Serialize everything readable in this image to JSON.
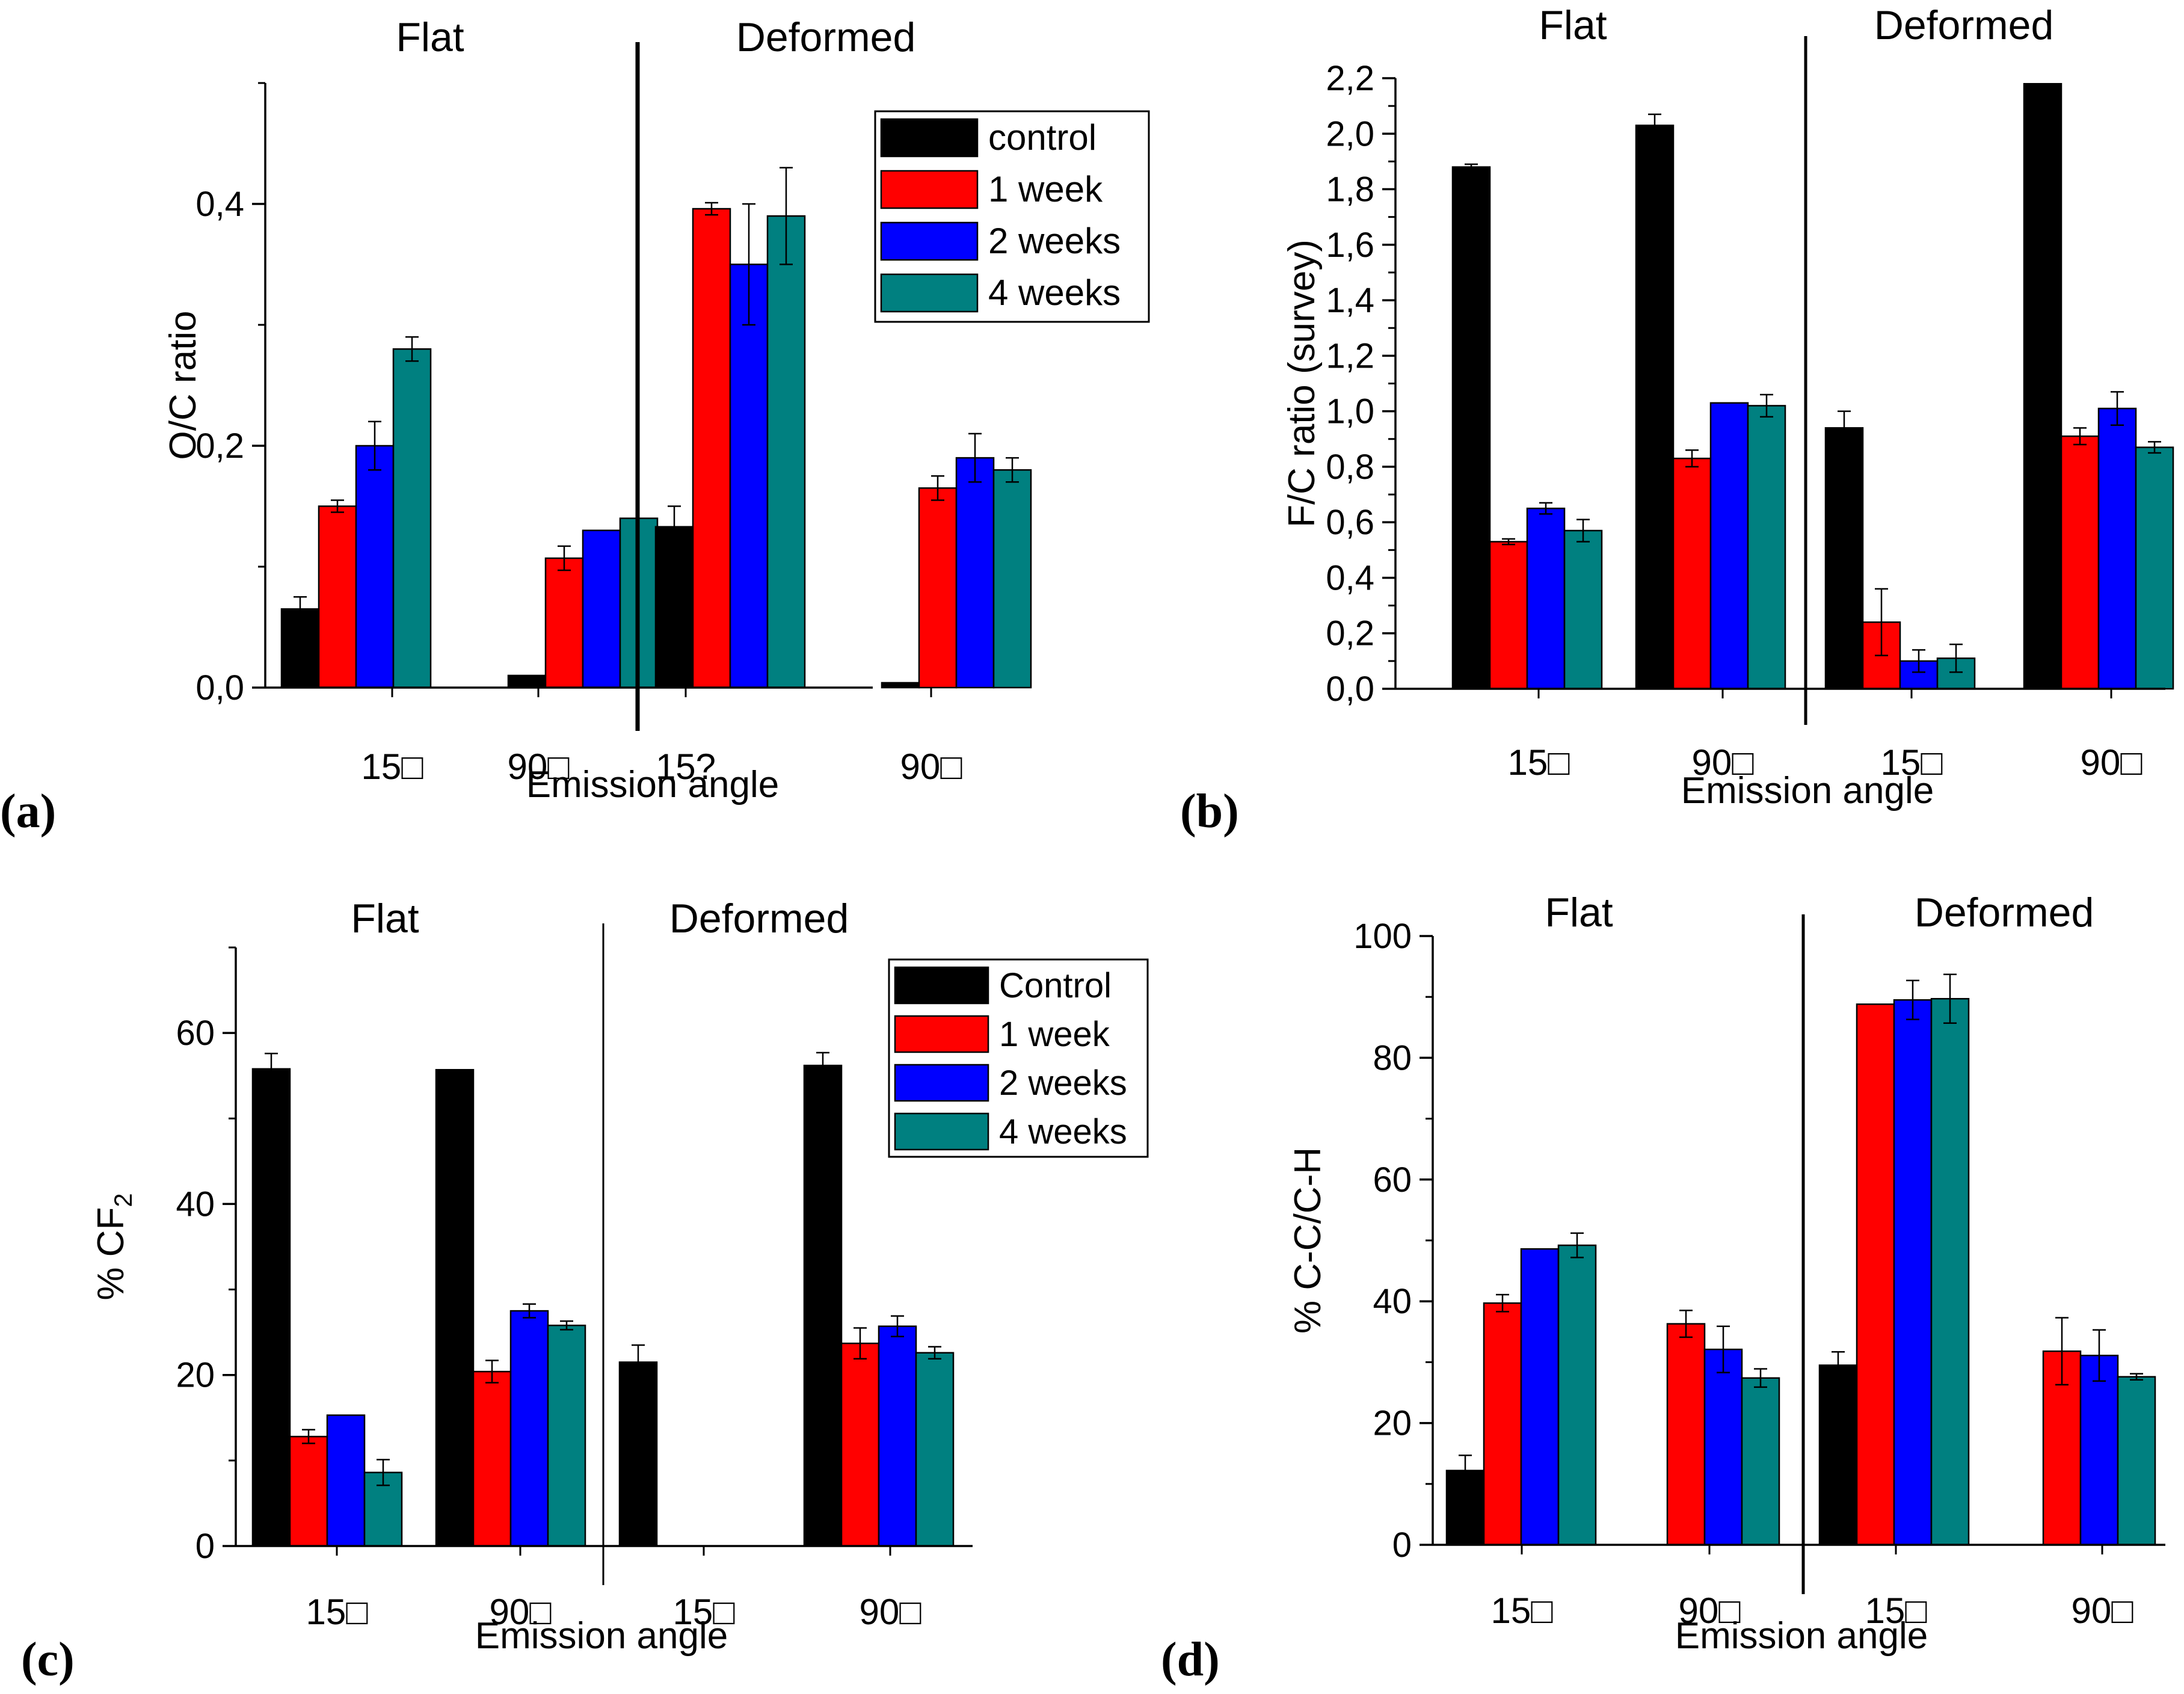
{
  "figure": {
    "background": "#ffffff"
  },
  "colors": {
    "control": "#000000",
    "1 week": "#ff0000",
    "2 weeks": "#0000ff",
    "4 weeks": "#008080"
  },
  "chart_data": [
    {
      "panel": "(a)",
      "type": "bar",
      "ylabel": "O/C ratio",
      "xlabel": "Emission angle",
      "ylim": [
        0,
        0.5
      ],
      "yticks": [
        0.0,
        0.2,
        0.4
      ],
      "ytick_labels": [
        "0,0",
        "0,2",
        "0,4"
      ],
      "minor_ticks": true,
      "groups": [
        "Flat",
        "Deformed"
      ],
      "categories": [
        "15□",
        "90□",
        "15?",
        "90□"
      ],
      "legend": {
        "position": "top-right",
        "entries": [
          "control",
          "1 week",
          "2 weeks",
          "4 weeks"
        ]
      },
      "series": [
        {
          "name": "control",
          "values": [
            0.065,
            0.01,
            0.133,
            0.004
          ],
          "errors": [
            0.01,
            0.0,
            0.017,
            0.0
          ]
        },
        {
          "name": "1 week",
          "values": [
            0.15,
            0.107,
            0.396,
            0.165
          ],
          "errors": [
            0.005,
            0.01,
            0.005,
            0.01
          ]
        },
        {
          "name": "2 weeks",
          "values": [
            0.2,
            0.13,
            0.35,
            0.19
          ],
          "errors": [
            0.02,
            0.0,
            0.05,
            0.02
          ]
        },
        {
          "name": "4 weeks",
          "values": [
            0.28,
            0.14,
            0.39,
            0.18
          ],
          "errors": [
            0.01,
            0.0,
            0.04,
            0.01
          ]
        }
      ]
    },
    {
      "panel": "(b)",
      "type": "bar",
      "ylabel": "F/C ratio (survey)",
      "xlabel": "Emission angle",
      "ylim": [
        0,
        2.2
      ],
      "yticks": [
        0.0,
        0.2,
        0.4,
        0.6,
        0.8,
        1.0,
        1.2,
        1.4,
        1.6,
        1.8,
        2.0,
        2.2
      ],
      "ytick_labels": [
        "0,0",
        "0,2",
        "0,4",
        "0,6",
        "0,8",
        "1,0",
        "1,2",
        "1,4",
        "1,6",
        "1,8",
        "2,0",
        "2,2"
      ],
      "minor_ticks": true,
      "groups": [
        "Flat",
        "Deformed"
      ],
      "categories": [
        "15□",
        "90□",
        "15□",
        "90□"
      ],
      "series": [
        {
          "name": "control",
          "values": [
            1.88,
            2.03,
            0.94,
            2.18
          ],
          "errors": [
            0.01,
            0.04,
            0.06,
            0.0
          ]
        },
        {
          "name": "1 week",
          "values": [
            0.53,
            0.83,
            0.24,
            0.91
          ],
          "errors": [
            0.01,
            0.03,
            0.12,
            0.03
          ]
        },
        {
          "name": "2 weeks",
          "values": [
            0.65,
            1.03,
            0.1,
            1.01
          ],
          "errors": [
            0.02,
            0.0,
            0.04,
            0.06
          ]
        },
        {
          "name": "4 weeks",
          "values": [
            0.57,
            1.02,
            0.11,
            0.87
          ],
          "errors": [
            0.04,
            0.04,
            0.05,
            0.02
          ]
        }
      ]
    },
    {
      "panel": "(c)",
      "type": "bar",
      "ylabel": "% CF",
      "ylabel_subscript": "2",
      "xlabel": "Emission angle",
      "ylim": [
        0,
        70
      ],
      "yticks": [
        0,
        20,
        40,
        60
      ],
      "ytick_labels": [
        "0",
        "20",
        "40",
        "60"
      ],
      "minor_ticks": true,
      "groups": [
        "Flat",
        "Deformed"
      ],
      "categories": [
        "15□",
        "90□",
        "15□",
        "90□"
      ],
      "legend": {
        "position": "top-right",
        "entries": [
          "Control",
          "1 week",
          "2 weeks",
          "4 weeks"
        ]
      },
      "series": [
        {
          "name": "Control",
          "values": [
            55.8,
            55.7,
            21.5,
            56.2
          ],
          "errors": [
            1.8,
            0.0,
            2.0,
            1.5
          ]
        },
        {
          "name": "1 week",
          "values": [
            12.8,
            20.4,
            0,
            23.7
          ],
          "errors": [
            0.8,
            1.3,
            0,
            1.8
          ]
        },
        {
          "name": "2 weeks",
          "values": [
            15.3,
            27.5,
            0,
            25.7
          ],
          "errors": [
            0.0,
            0.8,
            0,
            1.2
          ]
        },
        {
          "name": "4 weeks",
          "values": [
            8.6,
            25.8,
            0,
            22.6
          ],
          "errors": [
            1.5,
            0.5,
            0,
            0.7
          ]
        }
      ]
    },
    {
      "panel": "(d)",
      "type": "bar",
      "ylabel": "% C-C/C-H",
      "xlabel": "Emission angle",
      "ylim": [
        0,
        100
      ],
      "yticks": [
        0,
        20,
        40,
        60,
        80,
        100
      ],
      "ytick_labels": [
        "0",
        "20",
        "40",
        "60",
        "80",
        "100"
      ],
      "minor_ticks": true,
      "groups": [
        "Flat",
        "Deformed"
      ],
      "categories": [
        "15□",
        "90□",
        "15□",
        "90□"
      ],
      "series": [
        {
          "name": "control",
          "values": [
            12.2,
            0,
            29.5,
            0
          ],
          "errors": [
            2.5,
            0,
            2.2,
            0
          ]
        },
        {
          "name": "1 week",
          "values": [
            39.7,
            36.3,
            88.8,
            31.8
          ],
          "errors": [
            1.4,
            2.2,
            0.0,
            5.5
          ]
        },
        {
          "name": "2 weeks",
          "values": [
            48.6,
            32.1,
            89.5,
            31.1
          ],
          "errors": [
            0.0,
            3.8,
            3.2,
            4.2
          ]
        },
        {
          "name": "4 weeks",
          "values": [
            49.2,
            27.4,
            89.7,
            27.6
          ],
          "errors": [
            2.0,
            1.5,
            4.0,
            0.5
          ]
        }
      ]
    }
  ]
}
